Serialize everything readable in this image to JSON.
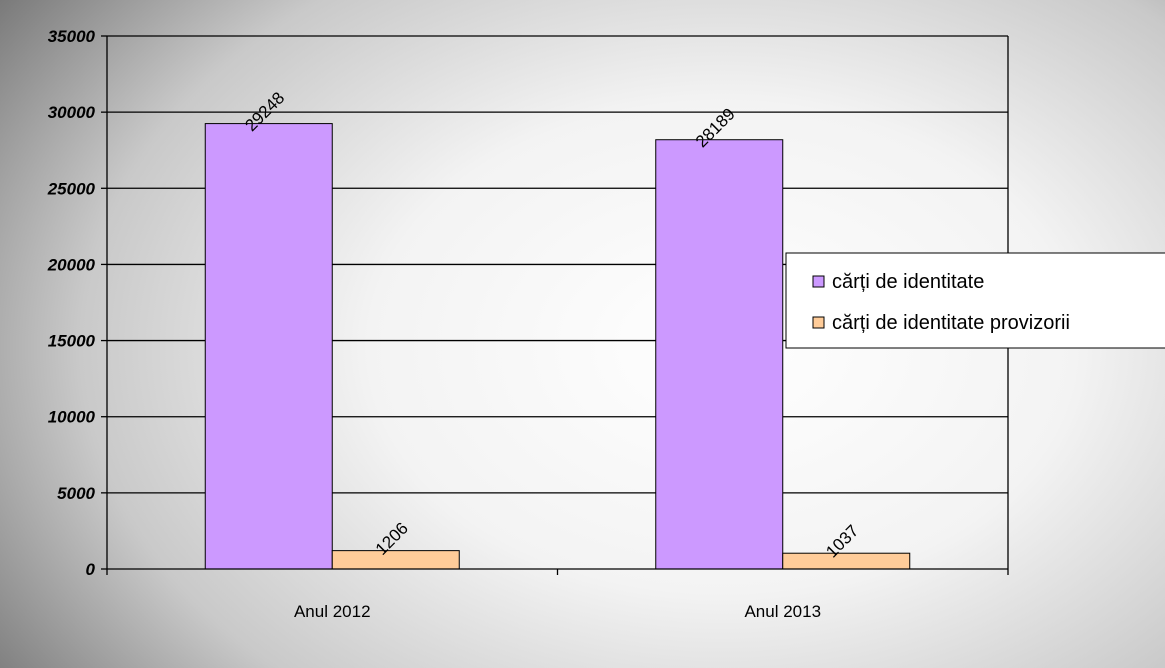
{
  "chart_data": {
    "type": "bar",
    "title": "",
    "xlabel": "",
    "ylabel": "",
    "categories": [
      "Anul 2012",
      "Anul 2013"
    ],
    "series": [
      {
        "name": "cărți de identitate",
        "values": [
          29248,
          28189
        ],
        "color": "#cc99ff"
      },
      {
        "name": "cărți de identitate provizorii",
        "values": [
          1206,
          1037
        ],
        "color": "#ffcc99"
      }
    ],
    "ylim": [
      0,
      35000
    ],
    "yticks": [
      "0",
      "5000",
      "10000",
      "15000",
      "20000",
      "25000",
      "30000",
      "35000"
    ],
    "data_labels": [
      "29248",
      "1206",
      "28189",
      "1037"
    ],
    "grid": true,
    "legend_position": "right"
  }
}
